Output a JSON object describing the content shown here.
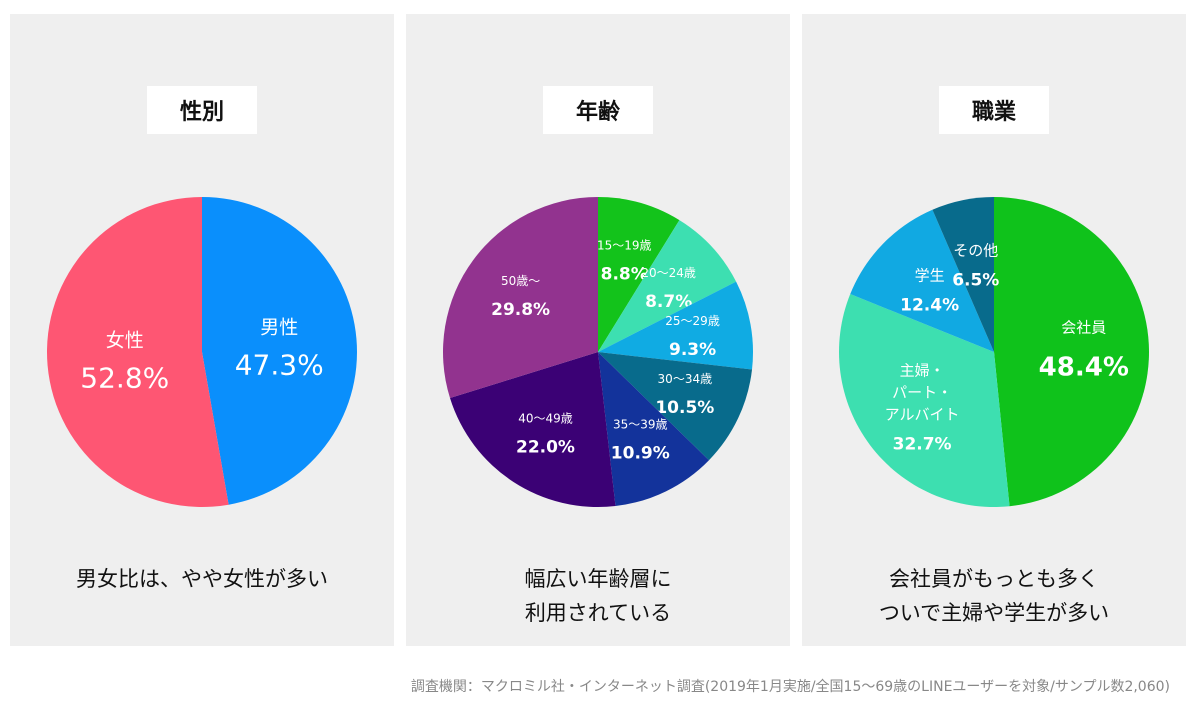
{
  "chart_data": [
    {
      "type": "pie",
      "title": "性別",
      "slices": [
        {
          "label": "男性",
          "value": 47.3,
          "value_label": "47.3%",
          "color": "#0a8ffc"
        },
        {
          "label": "女性",
          "value": 52.8,
          "value_label": "52.8%",
          "color": "#fe5673"
        }
      ],
      "caption": [
        "男女比は、やや女性が多い"
      ]
    },
    {
      "type": "pie",
      "title": "年齢",
      "slices": [
        {
          "label": "15～19歳",
          "value": 8.8,
          "value_label": "8.8%",
          "color": "#13c31b"
        },
        {
          "label": "20～24歳",
          "value": 8.7,
          "value_label": "8.7%",
          "color": "#3ddfb1"
        },
        {
          "label": "25～29歳",
          "value": 9.3,
          "value_label": "9.3%",
          "color": "#10abe3"
        },
        {
          "label": "30～34歳",
          "value": 10.5,
          "value_label": "10.5%",
          "color": "#086b8c"
        },
        {
          "label": "35～39歳",
          "value": 10.9,
          "value_label": "10.9%",
          "color": "#13339b"
        },
        {
          "label": "40～49歳",
          "value": 22.0,
          "value_label": "22.0%",
          "color": "#3b0175"
        },
        {
          "label": "50歳～",
          "value": 29.8,
          "value_label": "29.8%",
          "color": "#92338f"
        }
      ],
      "caption": [
        "幅広い年齢層に",
        "利用されている"
      ]
    },
    {
      "type": "pie",
      "title": "職業",
      "slices": [
        {
          "label": "会社員",
          "value": 48.4,
          "value_label": "48.4%",
          "color": "#0fc21b"
        },
        {
          "label": "主婦・\nパート・\nアルバイト",
          "value": 32.7,
          "value_label": "32.7%",
          "color": "#3ddfb0"
        },
        {
          "label": "学生",
          "value": 12.4,
          "value_label": "12.4%",
          "color": "#11a9e2"
        },
        {
          "label": "その他",
          "value": 6.5,
          "value_label": "6.5%",
          "color": "#086b8c"
        }
      ],
      "caption": [
        "会社員がもっとも多く",
        "ついで主婦や学生が多い"
      ]
    }
  ],
  "footnote": "調査機関：マクロミル社・インターネット調査(2019年1月実施/全国15～69歳のLINEユーザーを対象/サンプル数2,060)"
}
